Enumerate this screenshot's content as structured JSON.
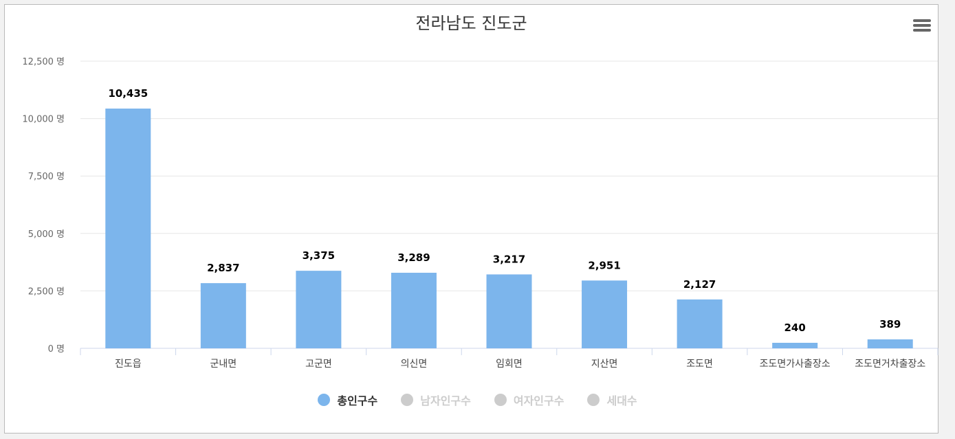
{
  "chart_data": {
    "type": "bar",
    "title": "전라남도 진도군",
    "categories": [
      "진도읍",
      "군내면",
      "고군면",
      "의신면",
      "임회면",
      "지산면",
      "조도면",
      "조도면가사출장소",
      "조도면거차출장소"
    ],
    "series": [
      {
        "name": "총인구수",
        "values": [
          10435,
          2837,
          3375,
          3289,
          3217,
          2951,
          2127,
          240,
          389
        ],
        "visible": true
      }
    ],
    "data_labels": [
      "10,435",
      "2,837",
      "3,375",
      "3,289",
      "3,217",
      "2,951",
      "2,127",
      "240",
      "389"
    ],
    "ylim": [
      0,
      12500
    ],
    "yticks": [
      0,
      2500,
      5000,
      7500,
      10000,
      12500
    ],
    "ytick_labels": [
      "0 명",
      "2,500 명",
      "5,000 명",
      "7,500 명",
      "10,000 명",
      "12,500 명"
    ],
    "grid": true,
    "legend_position": "bottom-center",
    "bar_color": "#7cb5ec"
  },
  "legend": [
    {
      "label": "총인구수",
      "active": true,
      "color": "#7cb5ec"
    },
    {
      "label": "남자인구수",
      "active": false,
      "color": "#cccccc"
    },
    {
      "label": "여자인구수",
      "active": false,
      "color": "#cccccc"
    },
    {
      "label": "세대수",
      "active": false,
      "color": "#cccccc"
    }
  ],
  "menu_icon": "hamburger-menu-icon"
}
